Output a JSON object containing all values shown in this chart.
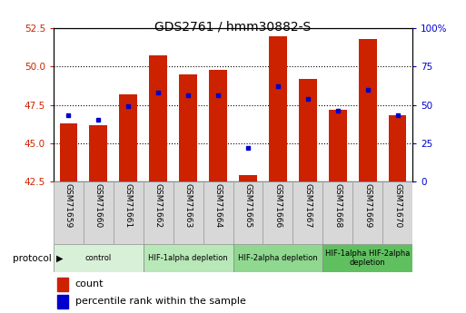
{
  "title": "GDS2761 / hmm30882-S",
  "samples": [
    "GSM71659",
    "GSM71660",
    "GSM71661",
    "GSM71662",
    "GSM71663",
    "GSM71664",
    "GSM71665",
    "GSM71666",
    "GSM71667",
    "GSM71668",
    "GSM71669",
    "GSM71670"
  ],
  "count_values": [
    46.3,
    46.2,
    48.2,
    50.7,
    49.5,
    49.8,
    42.9,
    52.0,
    49.2,
    47.2,
    51.8,
    46.8
  ],
  "percentile_values": [
    46.8,
    46.5,
    47.4,
    48.3,
    48.1,
    48.1,
    44.7,
    48.7,
    47.9,
    47.1,
    48.5,
    46.8
  ],
  "ylim_left": [
    42.5,
    52.5
  ],
  "ylim_right": [
    0,
    100
  ],
  "yticks_left": [
    42.5,
    45.0,
    47.5,
    50.0,
    52.5
  ],
  "yticks_right": [
    0,
    25,
    50,
    75,
    100
  ],
  "ytick_labels_right": [
    "0",
    "25",
    "50",
    "75",
    "100%"
  ],
  "bar_bottom": 42.5,
  "bar_color": "#cc2200",
  "dot_color": "#0000cc",
  "groups": [
    {
      "label": "control",
      "start": 0,
      "end": 3,
      "color": "#d8f0d8"
    },
    {
      "label": "HIF-1alpha depletion",
      "start": 3,
      "end": 6,
      "color": "#b8e8b8"
    },
    {
      "label": "HIF-2alpha depletion",
      "start": 6,
      "end": 9,
      "color": "#90d890"
    },
    {
      "label": "HIF-1alpha HIF-2alpha\ndepletion",
      "start": 9,
      "end": 12,
      "color": "#60c060"
    }
  ],
  "legend_count_label": "count",
  "legend_pct_label": "percentile rank within the sample",
  "protocol_label": "protocol",
  "left_tick_color": "#cc2200",
  "right_tick_color": "#0000cc",
  "sample_bg_color": "#d8d8d8",
  "bar_width": 0.6
}
